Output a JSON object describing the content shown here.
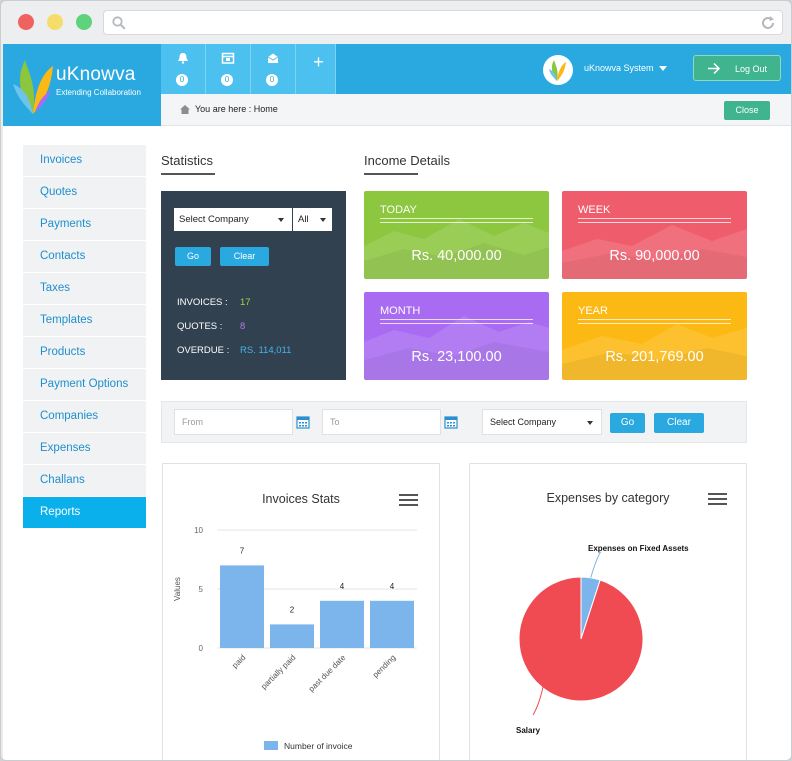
{
  "app": {
    "brand": "uKnowva",
    "tagline": "Extending Collaboration",
    "user_name": "uKnowva System",
    "logout_label": "Log Out",
    "breadcrumb": "You are here : Home",
    "close_label": "Close",
    "notifications": [
      {
        "icon": "bell-icon",
        "count": "0"
      },
      {
        "icon": "calendar-icon",
        "count": "0"
      },
      {
        "icon": "inbox-icon",
        "count": "0"
      }
    ],
    "add_label": "+"
  },
  "sidebar": {
    "items": [
      "Invoices",
      "Quotes",
      "Payments",
      "Contacts",
      "Taxes",
      "Templates",
      "Products",
      "Payment Options",
      "Companies",
      "Expenses",
      "Challans",
      "Reports"
    ],
    "active": "Reports"
  },
  "statistics": {
    "title": "Statistics",
    "company_select": "Select Company",
    "period_select": "All",
    "go_label": "Go",
    "clear_label": "Clear",
    "invoices_label": "INVOICES :",
    "invoices_value": "17",
    "quotes_label": "QUOTES :",
    "quotes_value": "8",
    "overdue_label": "OVERDUE :",
    "overdue_value": "RS. 114,011",
    "colors": {
      "invoices": "#a5d44a",
      "quotes": "#b27bf0",
      "overdue": "#43b4ea"
    }
  },
  "income": {
    "title": "Income Details",
    "cards": [
      {
        "label": "TODAY",
        "amount": "Rs. 40,000.00",
        "color": "#8dc63f"
      },
      {
        "label": "WEEK",
        "amount": "Rs. 90,000.00",
        "color": "#ef5d6c"
      },
      {
        "label": "MONTH",
        "amount": "Rs. 23,100.00",
        "color": "#a86bf2"
      },
      {
        "label": "YEAR",
        "amount": "Rs. 201,769.00",
        "color": "#fdb913"
      }
    ]
  },
  "filter": {
    "from_placeholder": "From",
    "to_placeholder": "To",
    "company_select": "Select Company",
    "go_label": "Go",
    "clear_label": "Clear"
  },
  "chart_data": [
    {
      "type": "bar",
      "title": "Invoices Stats",
      "ylabel": "Values",
      "xlabel": "",
      "categories": [
        "paid",
        "partially paid",
        "past due date",
        "pending"
      ],
      "series": [
        {
          "name": "Number of invoice",
          "values": [
            7,
            2,
            4,
            4
          ]
        }
      ],
      "ylim": [
        0,
        10
      ],
      "yticks": [
        "10",
        "5",
        "0"
      ],
      "color": "#7cb5ec",
      "grid": true,
      "legend": "bottom"
    },
    {
      "type": "pie",
      "title": "Expenses by category",
      "labels": [
        "Expenses on Fixed Assets",
        "Salary"
      ],
      "values": [
        5,
        95
      ],
      "colors": [
        "#7cb5ec",
        "#f04a53"
      ]
    }
  ]
}
